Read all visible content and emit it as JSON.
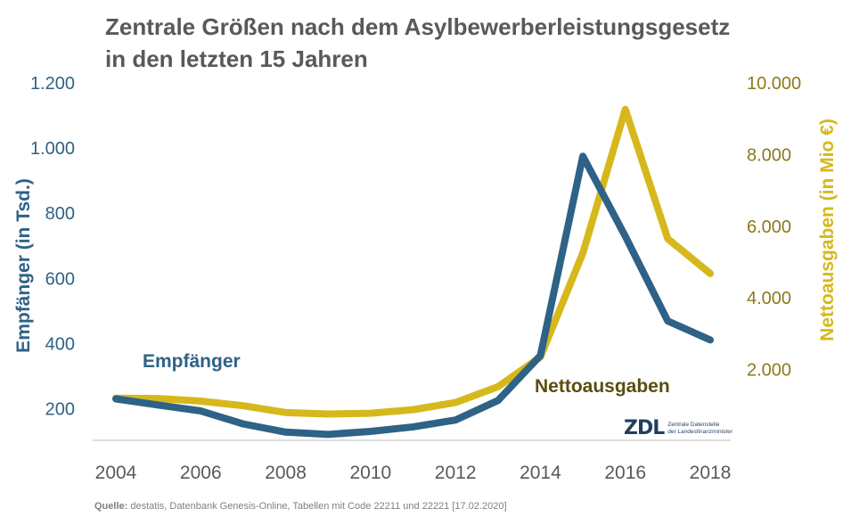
{
  "title_lines": [
    "Zentrale Größen nach dem Asylbewerberleistungsgesetz",
    "in den letzten 15 Jahren"
  ],
  "source": {
    "label": "Quelle:",
    "text": " destatis, Datenbank Genesis-Online, Tabellen mit Code 22211 und 22221 [17.02.2020]"
  },
  "logo": {
    "mark": "ZDL",
    "line1": "Zentrale Datenstelle",
    "line2": "der Landesfinanzminister"
  },
  "colors": {
    "recipients": "#2e6286",
    "expenses": "#d6b81c",
    "right_axis": "#8b7a1a",
    "grid": "#bfbfbf",
    "text": "#595959"
  },
  "chart_data": {
    "type": "line",
    "title": "Zentrale Größen nach dem Asylbewerberleistungsgesetz in den letzten 15 Jahren",
    "x": [
      2004,
      2005,
      2006,
      2007,
      2008,
      2009,
      2010,
      2011,
      2012,
      2013,
      2014,
      2015,
      2016,
      2017,
      2018
    ],
    "x_ticks": [
      2004,
      2006,
      2008,
      2010,
      2012,
      2014,
      2016,
      2018
    ],
    "x_tick_labels": [
      "2004",
      "2006",
      "2008",
      "2010",
      "2012",
      "2014",
      "2016",
      "2018"
    ],
    "y_left": {
      "label": "Empfänger (in Tsd.)",
      "range": [
        100,
        1200
      ],
      "ticks": [
        200,
        400,
        600,
        800,
        1000,
        1200
      ],
      "tick_labels": [
        "200",
        "400",
        "600",
        "800",
        "1.000",
        "1.200"
      ]
    },
    "y_right": {
      "label": "Nettoausgaben (in Mio €)",
      "range": [
        0,
        10000
      ],
      "ticks": [
        2000,
        4000,
        6000,
        8000,
        10000
      ],
      "tick_labels": [
        "2.000",
        "4.000",
        "6.000",
        "8.000",
        "10.000"
      ]
    },
    "series": [
      {
        "name": "Empfänger",
        "axis": "left",
        "values": [
          230,
          211,
          193,
          153,
          128,
          121,
          130,
          144,
          165,
          225,
          363,
          975,
          729,
          469,
          411
        ]
      },
      {
        "name": "Nettoausgaben",
        "axis": "right",
        "values": [
          1200,
          1190,
          1120,
          990,
          800,
          760,
          780,
          880,
          1080,
          1520,
          2350,
          5250,
          9260,
          5650,
          4680
        ]
      }
    ],
    "grid": false
  }
}
